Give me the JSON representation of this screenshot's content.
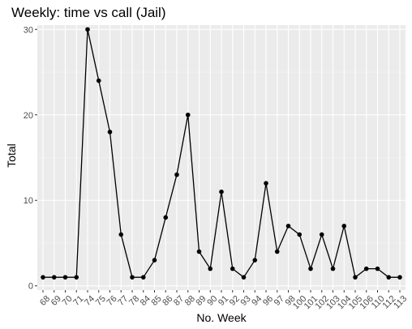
{
  "chart_data": {
    "type": "line",
    "title": "Weekly: time vs call (Jail)",
    "xlabel": "No. Week",
    "ylabel": "Total",
    "categories": [
      "68",
      "69",
      "70",
      "71",
      "74",
      "75",
      "76",
      "77",
      "78",
      "84",
      "85",
      "86",
      "87",
      "88",
      "89",
      "90",
      "91",
      "92",
      "93",
      "94",
      "96",
      "97",
      "98",
      "100",
      "101",
      "102",
      "103",
      "104",
      "105",
      "106",
      "110",
      "112",
      "113"
    ],
    "series": [
      {
        "values": [
          1,
          1,
          1,
          1,
          30,
          24,
          18,
          6,
          1,
          1,
          3,
          8,
          13,
          20,
          4,
          2,
          11,
          2,
          1,
          3,
          12,
          4,
          7,
          6,
          2,
          6,
          2,
          7,
          1,
          2,
          2,
          1,
          1
        ]
      }
    ],
    "y_ticks": [
      0,
      10,
      20,
      30
    ],
    "ylim": [
      -0.5,
      30.5
    ],
    "grid": true,
    "legend": "none",
    "colors": {
      "panel_background": "#ebebeb",
      "grid_major": "#ffffff",
      "grid_minor": "#f5f5f5",
      "line": "#000000",
      "point": "#000000",
      "tick_text": "#4d4d4d",
      "tick_mark": "#333333"
    }
  }
}
